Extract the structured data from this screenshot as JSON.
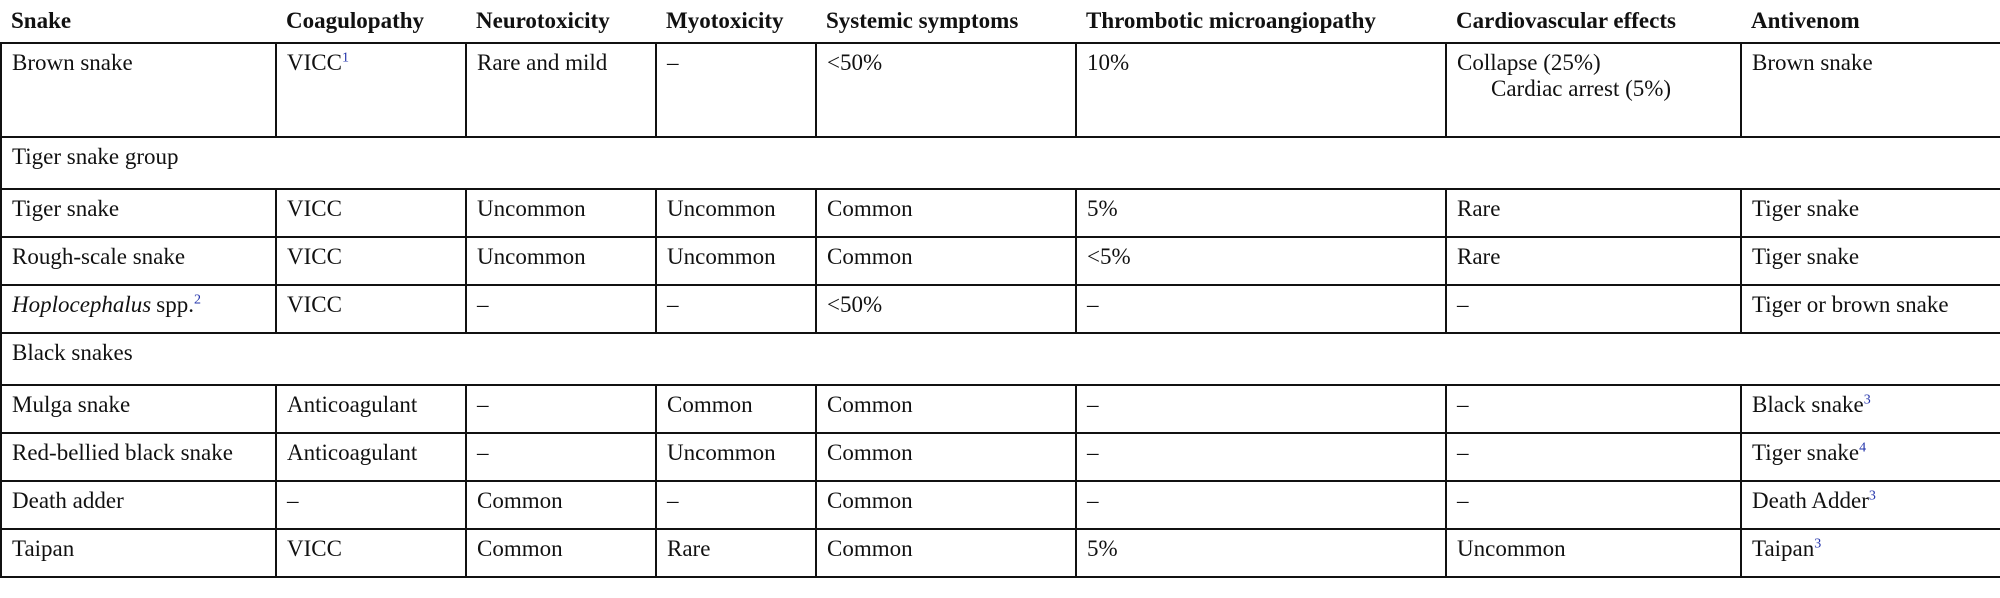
{
  "table": {
    "header": [
      "Snake",
      "Coagulopathy",
      "Neurotoxicity",
      "Myotoxicity",
      "Systemic symptoms",
      "Thrombotic microangiopathy",
      "Cardiovascular effects",
      "Antivenom"
    ],
    "rows": [
      {
        "cells": [
          "Brown snake",
          {
            "text": "VICC",
            "sup": "1"
          },
          "Rare and mild",
          "–",
          "<50%",
          "10%",
          {
            "lines": [
              "Collapse (25%)",
              "Cardiac arrest (5%)"
            ]
          },
          "Brown snake"
        ]
      },
      {
        "group": "Tiger snake group"
      },
      {
        "cells": [
          "Tiger snake",
          "VICC",
          "Uncommon",
          "Uncommon",
          "Common",
          "5%",
          "Rare",
          "Tiger snake"
        ]
      },
      {
        "cells": [
          "Rough-scale snake",
          "VICC",
          "Uncommon",
          "Uncommon",
          "Common",
          "<5%",
          "Rare",
          "Tiger snake"
        ]
      },
      {
        "cells": [
          {
            "italic": "Hoplocephalus",
            "text": "spp.",
            "sup": "2"
          },
          "VICC",
          "–",
          "–",
          "<50%",
          "–",
          "–",
          "Tiger or brown snake"
        ]
      },
      {
        "group": "Black snakes"
      },
      {
        "cells": [
          "Mulga snake",
          "Anticoagulant",
          "–",
          "Common",
          "Common",
          "–",
          "–",
          {
            "text": "Black snake",
            "sup": "3"
          }
        ]
      },
      {
        "cells": [
          "Red-bellied black snake",
          "Anticoagulant",
          "–",
          "Uncommon",
          "Common",
          "–",
          "–",
          {
            "text": "Tiger snake",
            "sup": "4"
          }
        ]
      },
      {
        "cells": [
          "Death adder",
          "–",
          "Common",
          "–",
          "Common",
          "–",
          "–",
          {
            "text": "Death Adder",
            "sup": "3"
          }
        ]
      },
      {
        "cells": [
          "Taipan",
          "VICC",
          "Common",
          "Rare",
          "Common",
          "5%",
          "Uncommon",
          {
            "text": "Taipan",
            "sup": "3"
          }
        ]
      }
    ]
  }
}
